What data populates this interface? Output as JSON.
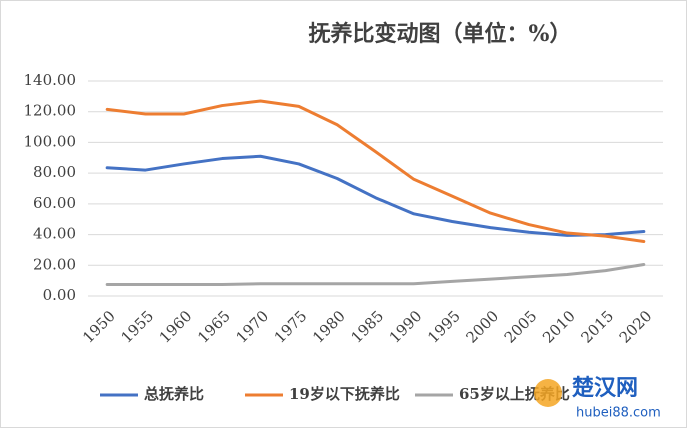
{
  "chart_data": {
    "type": "line",
    "title": "抚养比变动图（单位：%）",
    "categories": [
      "1950",
      "1955",
      "1960",
      "1965",
      "1970",
      "1975",
      "1980",
      "1985",
      "1990",
      "1995",
      "2000",
      "2005",
      "2010",
      "2015",
      "2020"
    ],
    "series": [
      {
        "name": "总抚养比",
        "color": "#4472c4",
        "values": [
          83.5,
          82,
          86,
          89.5,
          91,
          86,
          76.5,
          64,
          53.5,
          48.5,
          44.5,
          41.5,
          39.5,
          40,
          42
        ]
      },
      {
        "name": "19岁以下抚养比",
        "color": "#ed7d31",
        "values": [
          121.5,
          118.5,
          118.5,
          124,
          127,
          123.5,
          111.5,
          94,
          76,
          65,
          54,
          46.5,
          41,
          39,
          35.5
        ]
      },
      {
        "name": "65岁以上抚养比",
        "color": "#a5a5a5",
        "values": [
          7.5,
          7.5,
          7.5,
          7.5,
          8,
          8,
          8,
          8,
          8,
          9.5,
          11,
          12.5,
          14,
          16.5,
          20.5
        ]
      }
    ],
    "ylim": [
      0,
      140
    ],
    "yticks": [
      {
        "value": 0,
        "label": "0.00"
      },
      {
        "value": 20,
        "label": "20.00"
      },
      {
        "value": 40,
        "label": "40.00"
      },
      {
        "value": 60,
        "label": "60.00"
      },
      {
        "value": 80,
        "label": "80.00"
      },
      {
        "value": 100,
        "label": "100.00"
      },
      {
        "value": 120,
        "label": "120.00"
      },
      {
        "value": 140,
        "label": "140.00"
      }
    ],
    "grid": true,
    "legend": "bottom",
    "watermark": {
      "name": "楚汉网",
      "url": "hubei88.com"
    }
  }
}
